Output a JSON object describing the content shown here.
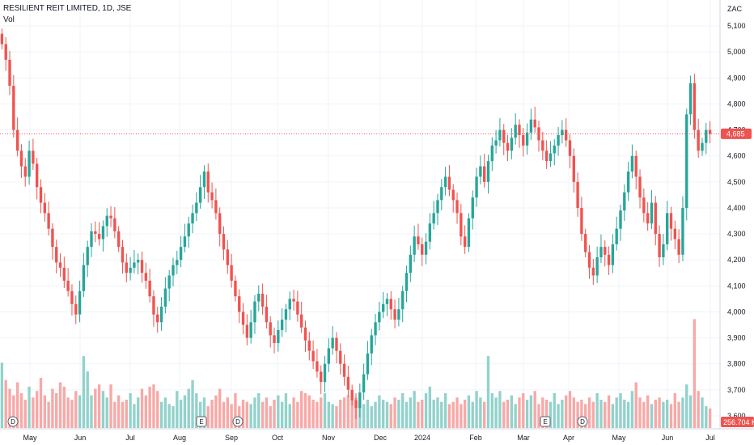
{
  "header": {
    "title": "RESILIENT REIT LIMITED, 1D, JSE",
    "volume_label": "Vol"
  },
  "price_axis": {
    "currency": "ZAC",
    "ticks": [
      "5,100",
      "5,000",
      "4,900",
      "4,800",
      "4,700",
      "4,600",
      "4,500",
      "4,400",
      "4,300",
      "4,200",
      "4,100",
      "4,000",
      "3,900",
      "3,800",
      "3,700",
      "3,600"
    ],
    "last_price_label": "4,685",
    "volume_label": "256.704 K"
  },
  "colors": {
    "up": "#26a69a",
    "down": "#ef5350",
    "up_volume": "#92d2cc",
    "down_volume": "#f7a9a7",
    "grid": "#f0f3fa",
    "last_price_line": "#ef5350"
  },
  "events": [
    "D",
    "E",
    "D",
    "E",
    "D"
  ],
  "chart_data": {
    "type": "candlestick",
    "title": "RESILIENT REIT LIMITED, 1D, JSE",
    "x_ticks": [
      "May",
      "Jun",
      "Jul",
      "Aug",
      "Sep",
      "Oct",
      "Nov",
      "Dec",
      "2024",
      "Feb",
      "Mar",
      "Apr",
      "May",
      "Jun",
      "Jul"
    ],
    "ylim": [
      3550,
      5200
    ],
    "grid": true,
    "last_price": 4685,
    "series": [
      {
        "name": "Price",
        "close": [
          5030,
          4970,
          4870,
          4700,
          4620,
          4560,
          4520,
          4620,
          4570,
          4480,
          4420,
          4380,
          4320,
          4250,
          4190,
          4170,
          4120,
          4080,
          4030,
          3990,
          4080,
          4180,
          4250,
          4310,
          4300,
          4280,
          4330,
          4370,
          4360,
          4310,
          4250,
          4190,
          4150,
          4170,
          4190,
          4200,
          4150,
          4120,
          4060,
          3990,
          3960,
          4020,
          4090,
          4140,
          4180,
          4200,
          4250,
          4290,
          4340,
          4380,
          4420,
          4480,
          4540,
          4460,
          4430,
          4380,
          4300,
          4240,
          4180,
          4120,
          4060,
          4000,
          3950,
          3900,
          3960,
          4040,
          4070,
          4020,
          3960,
          3910,
          3880,
          3930,
          3970,
          4010,
          4050,
          4040,
          3990,
          3940,
          3890,
          3850,
          3810,
          3770,
          3730,
          3800,
          3860,
          3900,
          3850,
          3800,
          3750,
          3700,
          3660,
          3630,
          3690,
          3760,
          3840,
          3910,
          3960,
          4000,
          4030,
          4050,
          4010,
          3970,
          4010,
          4080,
          4150,
          4220,
          4290,
          4260,
          4220,
          4270,
          4340,
          4380,
          4430,
          4480,
          4520,
          4470,
          4430,
          4380,
          4290,
          4250,
          4360,
          4440,
          4520,
          4560,
          4500,
          4580,
          4640,
          4660,
          4700,
          4650,
          4620,
          4670,
          4720,
          4680,
          4640,
          4690,
          4740,
          4710,
          4660,
          4620,
          4580,
          4610,
          4640,
          4680,
          4700,
          4660,
          4600,
          4500,
          4400,
          4300,
          4230,
          4170,
          4140,
          4210,
          4250,
          4220,
          4180,
          4260,
          4320,
          4390,
          4460,
          4540,
          4600,
          4520,
          4440,
          4380,
          4340,
          4420,
          4300,
          4210,
          4260,
          4380,
          4320,
          4280,
          4220,
          4400,
          4760,
          4880,
          4700,
          4620,
          4650,
          4700,
          4685
        ]
      },
      {
        "name": "Vol",
        "values": [
          300,
          220,
          180,
          150,
          210,
          160,
          130,
          190,
          140,
          170,
          230,
          150,
          120,
          180,
          160,
          210,
          190,
          140,
          130,
          170,
          150,
          330,
          260,
          150,
          180,
          200,
          170,
          140,
          200,
          120,
          150,
          120,
          130,
          160,
          110,
          140,
          180,
          150,
          190,
          200,
          170,
          120,
          140,
          110,
          100,
          170,
          130,
          150,
          180,
          220,
          160,
          120,
          140,
          100,
          130,
          150,
          180,
          120,
          140,
          110,
          160,
          100,
          130,
          120,
          110,
          140,
          160,
          120,
          140,
          100,
          130,
          150,
          120,
          160,
          110,
          140,
          120,
          170,
          160,
          150,
          130,
          120,
          140,
          160,
          120,
          110,
          100,
          130,
          140,
          150,
          160,
          140,
          120,
          110,
          130,
          100,
          120,
          150,
          130,
          120,
          110,
          140,
          130,
          160,
          120,
          140,
          170,
          120,
          130,
          160,
          190,
          130,
          140,
          120,
          160,
          110,
          120,
          140,
          110,
          130,
          150,
          120,
          170,
          140,
          120,
          330,
          160,
          140,
          170,
          120,
          130,
          150,
          110,
          140,
          160,
          130,
          150,
          170,
          110,
          140,
          130,
          120,
          160,
          110,
          130,
          150,
          170,
          140,
          120,
          130,
          110,
          140,
          120,
          160,
          130,
          120,
          150,
          110,
          140,
          160,
          130,
          120,
          170,
          210,
          140,
          120,
          150,
          110,
          130,
          140,
          120,
          130,
          110,
          160,
          120,
          140,
          200,
          150,
          500,
          170,
          140,
          100,
          90
        ]
      }
    ]
  }
}
